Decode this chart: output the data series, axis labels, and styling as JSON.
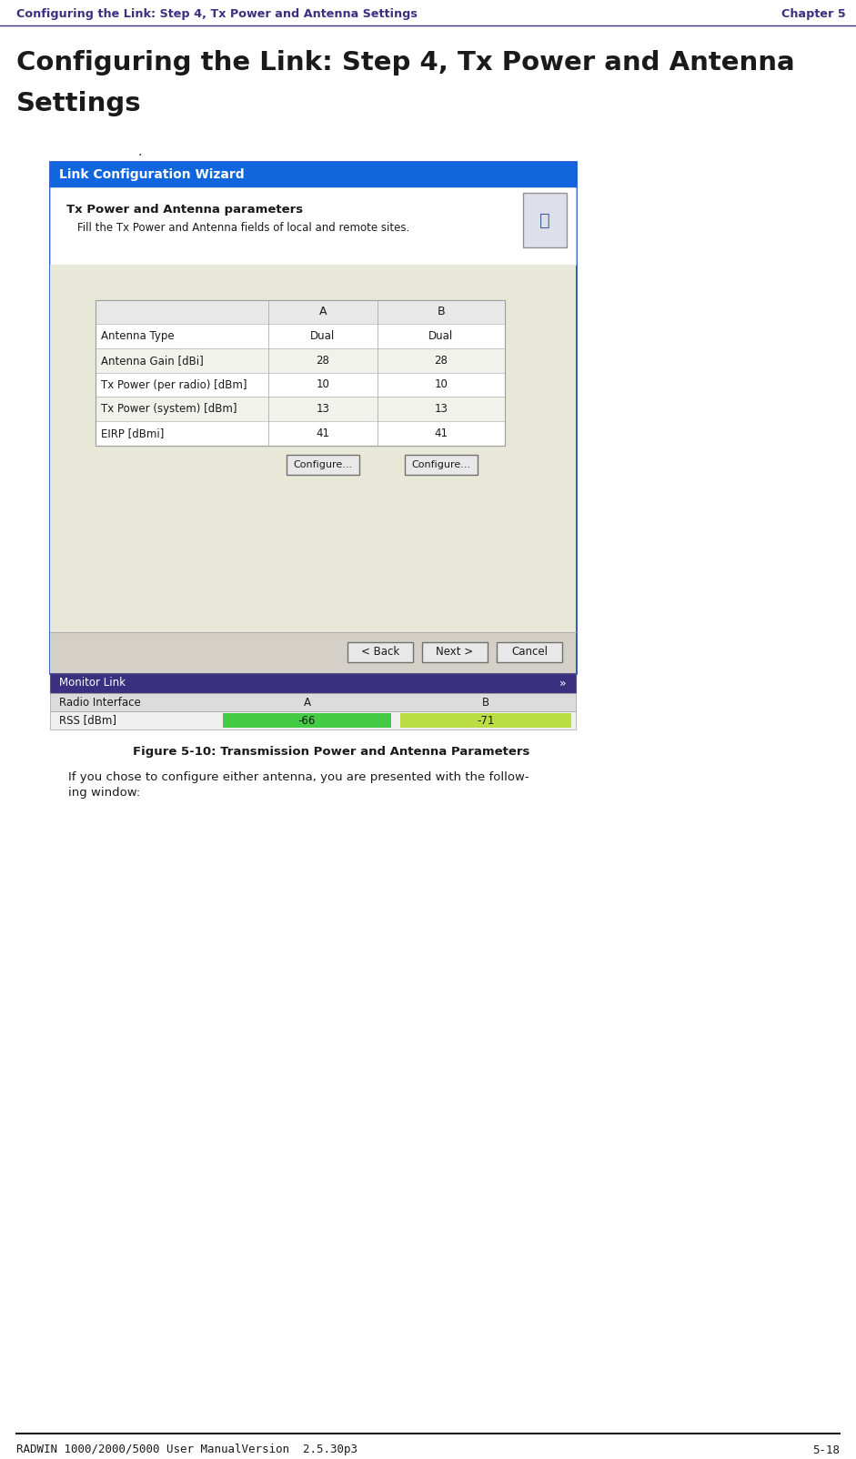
{
  "header_text": "Configuring the Link: Step 4, Tx Power and Antenna Settings",
  "header_right": "Chapter 5",
  "header_color": "#3b3080",
  "title_line1": "Configuring the Link: Step 4, Tx Power and Antenna",
  "title_line2": "Settings",
  "dot_text": ".",
  "wizard_title": "Link Configuration Wizard",
  "wizard_title_bg": "#1166dd",
  "wizard_title_color": "#ffffff",
  "section_title": "Tx Power and Antenna parameters",
  "section_subtitle": "Fill the Tx Power and Antenna fields of local and remote sites.",
  "table_rows": [
    [
      "Antenna Type",
      "Dual",
      "Dual"
    ],
    [
      "Antenna Gain [dBi]",
      "28",
      "28"
    ],
    [
      "Tx Power (per radio) [dBm]",
      "10",
      "10"
    ],
    [
      "Tx Power (system) [dBm]",
      "13",
      "13"
    ],
    [
      "EIRP [dBmi]",
      "41",
      "41"
    ]
  ],
  "configure_btn": "Configure...",
  "back_btn": "< Back",
  "next_btn": "Next >",
  "cancel_btn": "Cancel",
  "monitor_title": "Monitor Link",
  "monitor_bg": "#3b3080",
  "monitor_headers": [
    "Radio Interface",
    "A",
    "B"
  ],
  "monitor_row": [
    "RSS [dBm]",
    "-66",
    "-71"
  ],
  "rss_a_color": "#44cc44",
  "rss_b_color": "#bbdd44",
  "figure_caption": "Figure 5-10: Transmission Power and Antenna Parameters",
  "body_text_1": "If you chose to configure either antenna, you are presented with the follow-",
  "body_text_2": "ing window:",
  "footer_left": "RADWIN 1000/2000/5000 User ManualVersion  2.5.30p3",
  "footer_right": "5-18",
  "bg_color": "#ffffff",
  "dialog_outer_border": "#2255cc",
  "dialog_content_bg": "#e8e8d8",
  "dialog_bottom_bg": "#d4d0c8",
  "dialog_white_bg": "#ffffff",
  "table_border_color": "#a0a0a0",
  "btn_bg": "#e8e8e8",
  "btn_border": "#707070"
}
